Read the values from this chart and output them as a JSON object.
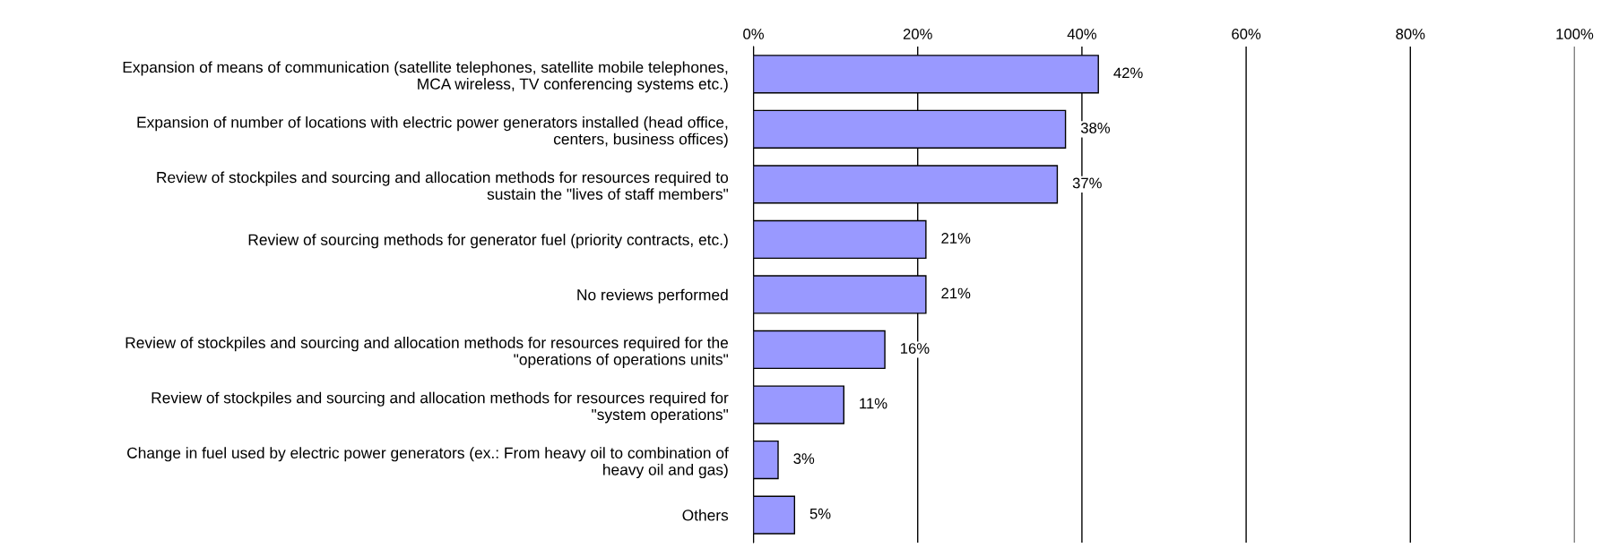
{
  "chart_data": {
    "type": "bar",
    "orientation": "horizontal",
    "categories": [
      "Expansion of means of communication (satellite telephones, satellite mobile telephones,\nMCA wireless, TV conferencing systems etc.)",
      "Expansion of number of locations with electric power generators installed (head office,\ncenters, business offices)",
      "Review of stockpiles and sourcing and allocation methods for resources required to\nsustain the \"lives of staff members\"",
      "Review of sourcing methods for generator fuel (priority contracts, etc.)",
      "No reviews performed",
      "Review of stockpiles and sourcing and allocation methods for resources required for the\n\"operations of operations units\"",
      "Review of stockpiles and sourcing and allocation methods for resources required for\n\"system operations\"",
      "Change in fuel used by electric power generators (ex.: From heavy oil to combination of\nheavy oil and gas)",
      "Others"
    ],
    "values": [
      42,
      38,
      37,
      21,
      21,
      16,
      11,
      3,
      5
    ],
    "value_labels": [
      "42%",
      "38%",
      "37%",
      "21%",
      "21%",
      "16%",
      "11%",
      "3%",
      "5%"
    ],
    "color": "#9999ff",
    "xlim": [
      0,
      100
    ],
    "xticks": [
      {
        "value": 0,
        "label": "0%"
      },
      {
        "value": 20,
        "label": "20%"
      },
      {
        "value": 40,
        "label": "40%"
      },
      {
        "value": 60,
        "label": "60%"
      },
      {
        "value": 80,
        "label": "80%"
      },
      {
        "value": 100,
        "label": "100%"
      }
    ],
    "grid": "x"
  }
}
